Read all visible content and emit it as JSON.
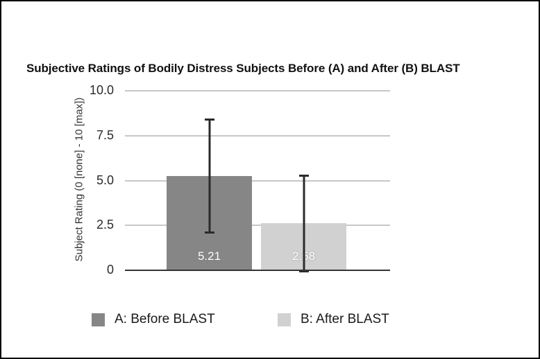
{
  "chart_data": {
    "type": "bar",
    "title": "Subjective Ratings of Bodily Distress Subjects Before (A) and After (B) BLAST",
    "xlabel": "",
    "ylabel": "Subject Rating (0 [none] - 10 [max])",
    "ylim": [
      0,
      10
    ],
    "y_ticks": [
      0,
      2.5,
      5,
      7.5,
      10
    ],
    "y_tick_labels": [
      "0",
      "2.5",
      "5.0",
      "7.5",
      "10.0"
    ],
    "categories": [
      "A: Before BLAST",
      "B: After BLAST"
    ],
    "values": [
      5.21,
      2.58
    ],
    "value_labels": [
      "5.21",
      "2.58"
    ],
    "error_bars": [
      {
        "low": 2.05,
        "high": 8.37
      },
      {
        "low": -0.12,
        "high": 5.27
      }
    ],
    "bar_colors": [
      "#868686",
      "#d1d1d1"
    ],
    "legend": [
      {
        "label": "A: Before BLAST",
        "color": "#868686"
      },
      {
        "label": "B: After BLAST",
        "color": "#d1d1d1"
      }
    ],
    "legend_position": "bottom",
    "grid": true
  },
  "colors": {
    "gridline": "#c7c7c7",
    "axis": "#333333",
    "error_bar": "#2b2b2b",
    "value_label": "#ffffff",
    "frame_border": "#000000",
    "background": "#ffffff"
  }
}
